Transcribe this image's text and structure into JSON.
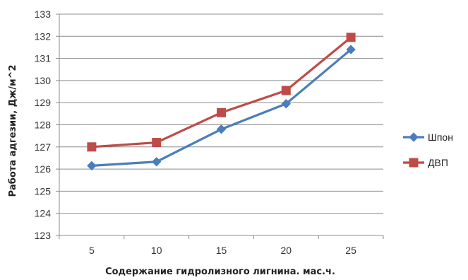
{
  "chart_data": {
    "type": "line",
    "title": "",
    "xlabel": "Содержание гидролизного лигнина. мас.ч.",
    "ylabel": "Работа адгезии, Дж/м^2",
    "x": [
      5,
      10,
      15,
      20,
      25
    ],
    "categories": [
      "5",
      "10",
      "15",
      "20",
      "25"
    ],
    "ylim": [
      123,
      133
    ],
    "yticks": [
      "123",
      "124",
      "125",
      "126",
      "127",
      "128",
      "129",
      "130",
      "131",
      "132",
      "133"
    ],
    "grid": true,
    "legend_position": "right",
    "series": [
      {
        "name": "Шпон",
        "values": [
          126.15,
          126.33,
          127.8,
          128.95,
          131.4
        ],
        "color": "#4a7ebb",
        "marker": "diamond"
      },
      {
        "name": "ДВП",
        "values": [
          127.0,
          127.2,
          128.55,
          129.55,
          131.95
        ],
        "color": "#be4b48",
        "marker": "square"
      }
    ]
  }
}
